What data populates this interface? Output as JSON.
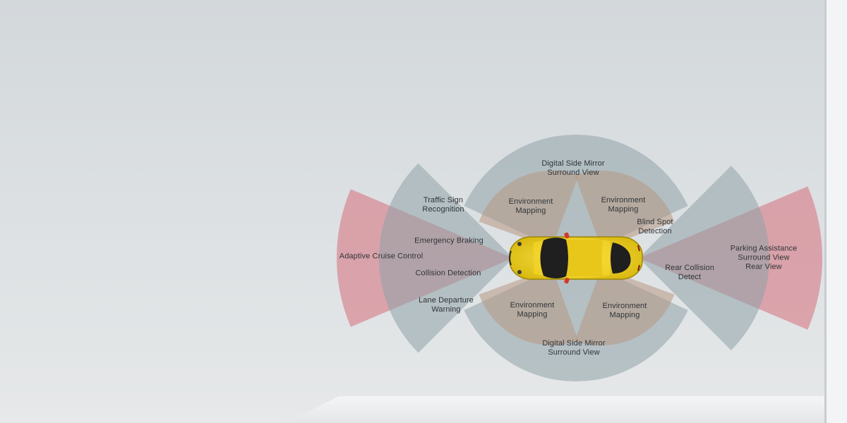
{
  "diagram": {
    "car": {
      "body_color": "#f2d21a",
      "accent_color": "#d23a2a",
      "name": "car-top-view"
    },
    "colors": {
      "long_range": "#d77b86",
      "mid_range": "#8fa3a8",
      "short_range": "#b79884",
      "wall": "#d9dde0",
      "floor": "#eef0f1"
    },
    "labels": {
      "digital_side_mirror_top": [
        "Digital Side Mirror",
        "Surround View"
      ],
      "traffic_sign": [
        "Traffic Sign",
        "Recognition"
      ],
      "env_top_left": [
        "Environment",
        "Mapping"
      ],
      "env_top_right": [
        "Environment",
        "Mapping"
      ],
      "blind_spot": [
        "Blind Spot",
        "Detection"
      ],
      "emergency_braking": [
        "Emergency Braking"
      ],
      "adaptive_cruise": [
        "Adaptive Cruise Control"
      ],
      "collision_detection": [
        "Collision Detection"
      ],
      "rear_collision": [
        "Rear Collision",
        "Detect"
      ],
      "parking_assist": [
        "Parking Assistance",
        "Surround View",
        "Rear View"
      ],
      "lane_departure": [
        "Lane Departure",
        "Warning"
      ],
      "env_bottom_left": [
        "Environment",
        "Mapping"
      ],
      "env_bottom_right": [
        "Environment",
        "Mapping"
      ],
      "digital_side_mirror_bottom": [
        "Digital Side Mirror",
        "Surround View"
      ]
    }
  }
}
